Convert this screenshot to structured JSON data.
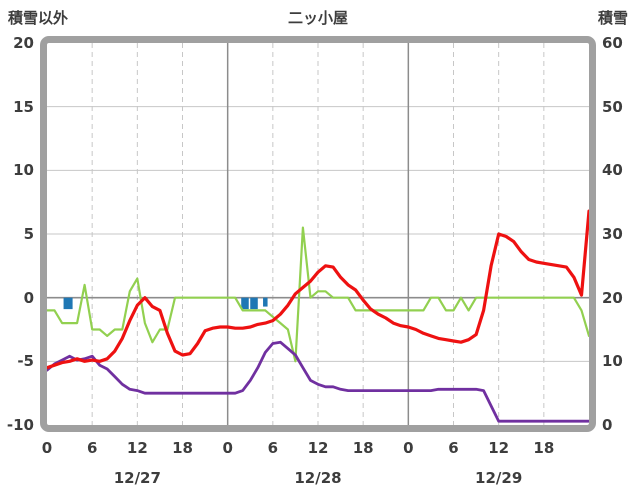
{
  "chart_data": {
    "type": "line",
    "title": "二ッ小屋",
    "left_axis": {
      "label": "積雪以外",
      "min": -10,
      "max": 20,
      "ticks": [
        20,
        15,
        10,
        5,
        0,
        -5,
        -10
      ]
    },
    "right_axis": {
      "label": "積雪",
      "min": 0,
      "max": 60,
      "ticks": [
        60,
        50,
        40,
        30,
        20,
        10,
        0
      ]
    },
    "x_axis": {
      "min_hour": 0,
      "max_hour": 72,
      "tick_hours": [
        0,
        6,
        12,
        18,
        24,
        30,
        36,
        42,
        48,
        54,
        60,
        66
      ],
      "tick_labels": [
        "0",
        "6",
        "12",
        "18",
        "0",
        "6",
        "12",
        "18",
        "0",
        "6",
        "12",
        "18"
      ],
      "day_boundaries": [
        24,
        48
      ],
      "date_labels": [
        {
          "label": "12/27",
          "hour": 12
        },
        {
          "label": "12/28",
          "hour": 36
        },
        {
          "label": "12/29",
          "hour": 60
        }
      ]
    },
    "grid": {
      "minor_color": "#c7c7c7",
      "major_color": "#8c8c8c",
      "frame_color": "#a0a0a0"
    },
    "series": [
      {
        "id": "green-line",
        "axis": "right",
        "color": "#92d050",
        "stroke_width": 2.2,
        "values": [
          18,
          18,
          16,
          16,
          16,
          22,
          15,
          15,
          14,
          15,
          15,
          21,
          23,
          16,
          13,
          15,
          15,
          20,
          20,
          20,
          20,
          20,
          20,
          20,
          20,
          20,
          18,
          18,
          18,
          18,
          17,
          16,
          15,
          10,
          31,
          20,
          21,
          21,
          20,
          20,
          20,
          18,
          18,
          18,
          18,
          18,
          18,
          18,
          18,
          18,
          18,
          20,
          20,
          18,
          18,
          20,
          18,
          20,
          20,
          20,
          20,
          20,
          20,
          20,
          20,
          20,
          20,
          20,
          20,
          20,
          20,
          18,
          14
        ]
      },
      {
        "id": "purple-line",
        "axis": "left",
        "color": "#7030a0",
        "stroke_width": 2.8,
        "values": [
          -5.7,
          -5.2,
          -4.9,
          -4.6,
          -4.9,
          -4.8,
          -4.6,
          -5.3,
          -5.6,
          -6.2,
          -6.8,
          -7.2,
          -7.3,
          -7.5,
          -7.5,
          -7.5,
          -7.5,
          -7.5,
          -7.5,
          -7.5,
          -7.5,
          -7.5,
          -7.5,
          -7.5,
          -7.5,
          -7.5,
          -7.3,
          -6.5,
          -5.5,
          -4.3,
          -3.6,
          -3.5,
          -4.0,
          -4.5,
          -5.5,
          -6.5,
          -6.8,
          -7.0,
          -7.0,
          -7.2,
          -7.3,
          -7.3,
          -7.3,
          -7.3,
          -7.3,
          -7.3,
          -7.3,
          -7.3,
          -7.3,
          -7.3,
          -7.3,
          -7.3,
          -7.2,
          -7.2,
          -7.2,
          -7.2,
          -7.2,
          -7.2,
          -7.3,
          -8.5,
          -9.7,
          -9.7,
          -9.7,
          -9.7,
          -9.7,
          -9.7,
          -9.7,
          -9.7,
          -9.7,
          -9.7,
          -9.7,
          -9.7,
          -9.7
        ]
      },
      {
        "id": "red-line",
        "axis": "left",
        "color": "#ee1111",
        "stroke_width": 3.2,
        "values": [
          -5.5,
          -5.3,
          -5.1,
          -5.0,
          -4.8,
          -5.0,
          -4.9,
          -5.0,
          -4.8,
          -4.2,
          -3.2,
          -1.8,
          -0.6,
          0.0,
          -0.7,
          -1.0,
          -2.8,
          -4.2,
          -4.5,
          -4.4,
          -3.6,
          -2.6,
          -2.4,
          -2.3,
          -2.3,
          -2.4,
          -2.4,
          -2.3,
          -2.1,
          -2.0,
          -1.8,
          -1.3,
          -0.6,
          0.3,
          0.8,
          1.3,
          2.0,
          2.5,
          2.4,
          1.6,
          1.0,
          0.6,
          -0.2,
          -0.9,
          -1.3,
          -1.6,
          -2.0,
          -2.2,
          -2.3,
          -2.5,
          -2.8,
          -3.0,
          -3.2,
          -3.3,
          -3.4,
          -3.5,
          -3.3,
          -2.9,
          -1.0,
          2.5,
          5.0,
          4.8,
          4.4,
          3.6,
          3.0,
          2.8,
          2.7,
          2.6,
          2.5,
          2.4,
          1.6,
          0.2,
          6.8
        ]
      }
    ],
    "bars": [
      {
        "hour": 2.8,
        "width": 1.2,
        "depth": 0.9,
        "color": "#1f77b4"
      },
      {
        "hour": 26.3,
        "width": 1.0,
        "depth": 0.9,
        "color": "#1f77b4"
      },
      {
        "hour": 27.5,
        "width": 1.0,
        "depth": 0.9,
        "color": "#1f77b4"
      },
      {
        "hour": 29.0,
        "width": 0.6,
        "depth": 0.7,
        "color": "#1f77b4"
      }
    ]
  }
}
